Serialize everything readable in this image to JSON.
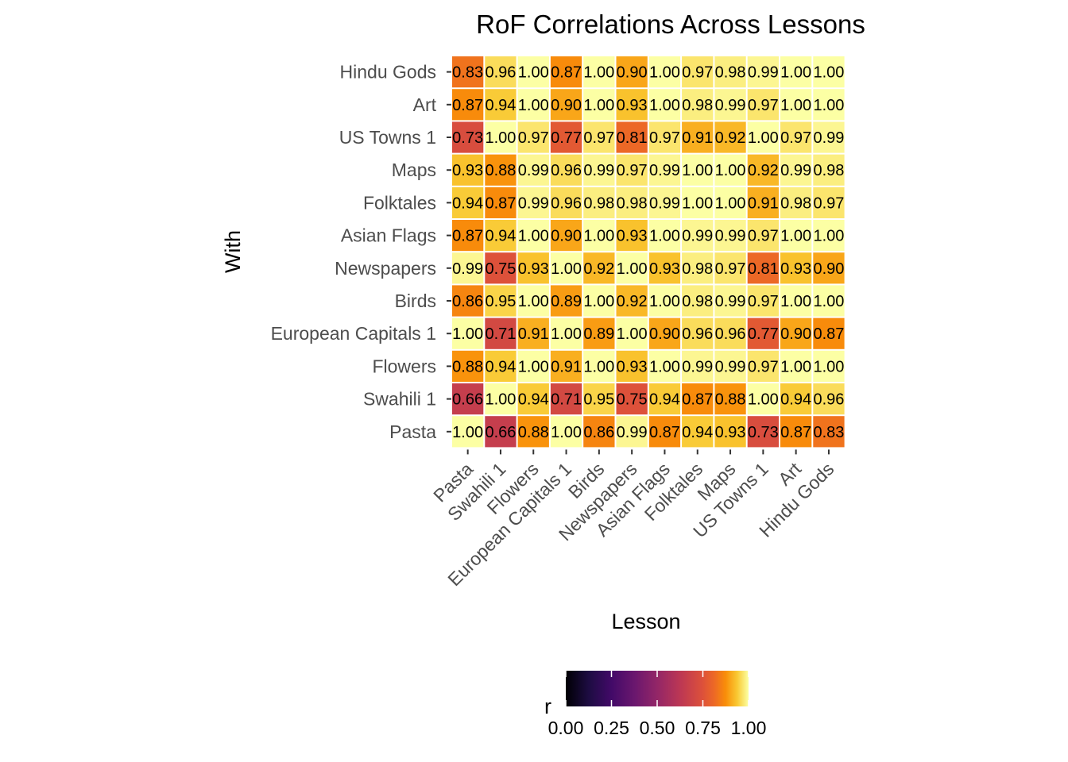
{
  "chart_data": {
    "type": "heatmap",
    "title": "RoF Correlations Across Lessons",
    "xlabel": "Lesson",
    "ylabel": "With",
    "x_categories": [
      "Pasta",
      "Swahili 1",
      "Flowers",
      "European Capitals 1",
      "Birds",
      "Newspapers",
      "Asian Flags",
      "Folktales",
      "Maps",
      "US Towns 1",
      "Art",
      "Hindu Gods"
    ],
    "y_categories_top_to_bottom": [
      "Hindu Gods",
      "Art",
      "US Towns 1",
      "Maps",
      "Folktales",
      "Asian Flags",
      "Newspapers",
      "Birds",
      "European Capitals 1",
      "Flowers",
      "Swahili 1",
      "Pasta"
    ],
    "values": [
      [
        0.83,
        0.96,
        1.0,
        0.87,
        1.0,
        0.9,
        1.0,
        0.97,
        0.98,
        0.99,
        1.0,
        1.0
      ],
      [
        0.87,
        0.94,
        1.0,
        0.9,
        1.0,
        0.93,
        1.0,
        0.98,
        0.99,
        0.97,
        1.0,
        1.0
      ],
      [
        0.73,
        1.0,
        0.97,
        0.77,
        0.97,
        0.81,
        0.97,
        0.91,
        0.92,
        1.0,
        0.97,
        0.99
      ],
      [
        0.93,
        0.88,
        0.99,
        0.96,
        0.99,
        0.97,
        0.99,
        1.0,
        1.0,
        0.92,
        0.99,
        0.98
      ],
      [
        0.94,
        0.87,
        0.99,
        0.96,
        0.98,
        0.98,
        0.99,
        1.0,
        1.0,
        0.91,
        0.98,
        0.97
      ],
      [
        0.87,
        0.94,
        1.0,
        0.9,
        1.0,
        0.93,
        1.0,
        0.99,
        0.99,
        0.97,
        1.0,
        1.0
      ],
      [
        0.99,
        0.75,
        0.93,
        1.0,
        0.92,
        1.0,
        0.93,
        0.98,
        0.97,
        0.81,
        0.93,
        0.9
      ],
      [
        0.86,
        0.95,
        1.0,
        0.89,
        1.0,
        0.92,
        1.0,
        0.98,
        0.99,
        0.97,
        1.0,
        1.0
      ],
      [
        1.0,
        0.71,
        0.91,
        1.0,
        0.89,
        1.0,
        0.9,
        0.96,
        0.96,
        0.77,
        0.9,
        0.87
      ],
      [
        0.88,
        0.94,
        1.0,
        0.91,
        1.0,
        0.93,
        1.0,
        0.99,
        0.99,
        0.97,
        1.0,
        1.0
      ],
      [
        0.66,
        1.0,
        0.94,
        0.71,
        0.95,
        0.75,
        0.94,
        0.87,
        0.88,
        1.0,
        0.94,
        0.96
      ],
      [
        1.0,
        0.66,
        0.88,
        1.0,
        0.86,
        0.99,
        0.87,
        0.94,
        0.93,
        0.73,
        0.87,
        0.83
      ]
    ],
    "value_range": [
      0,
      1
    ],
    "colormap": "inferno",
    "legend": {
      "title": "r",
      "position": "bottom",
      "ticks": [
        "0.00",
        "0.25",
        "0.50",
        "0.75",
        "1.00"
      ]
    },
    "grid": false
  }
}
